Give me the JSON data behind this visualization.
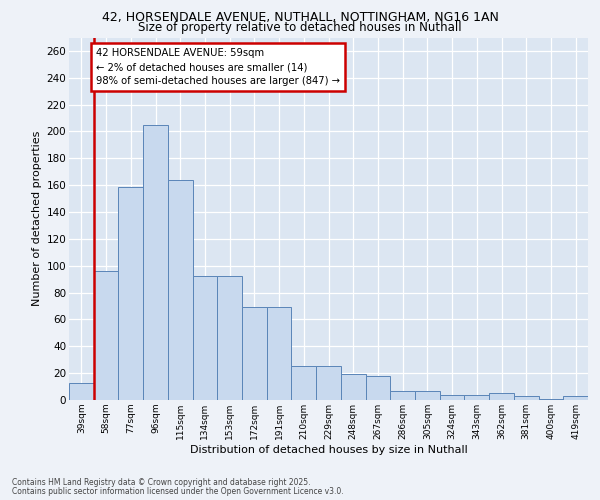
{
  "title_line1": "42, HORSENDALE AVENUE, NUTHALL, NOTTINGHAM, NG16 1AN",
  "title_line2": "Size of property relative to detached houses in Nuthall",
  "xlabel": "Distribution of detached houses by size in Nuthall",
  "ylabel": "Number of detached properties",
  "categories": [
    "39sqm",
    "58sqm",
    "77sqm",
    "96sqm",
    "115sqm",
    "134sqm",
    "153sqm",
    "172sqm",
    "191sqm",
    "210sqm",
    "229sqm",
    "248sqm",
    "267sqm",
    "286sqm",
    "305sqm",
    "324sqm",
    "343sqm",
    "362sqm",
    "381sqm",
    "400sqm",
    "419sqm"
  ],
  "values": [
    13,
    96,
    159,
    205,
    164,
    92,
    92,
    69,
    69,
    25,
    25,
    19,
    18,
    7,
    7,
    4,
    4,
    5,
    3,
    1,
    3
  ],
  "bar_color": "#c8d9ee",
  "bar_edge_color": "#5a85b8",
  "highlight_color": "#cc0000",
  "annotation_title": "42 HORSENDALE AVENUE: 59sqm",
  "annotation_line2": "← 2% of detached houses are smaller (14)",
  "annotation_line3": "98% of semi-detached houses are larger (847) →",
  "footer_line1": "Contains HM Land Registry data © Crown copyright and database right 2025.",
  "footer_line2": "Contains public sector information licensed under the Open Government Licence v3.0.",
  "plot_bg_color": "#dce6f2",
  "fig_bg_color": "#eef2f8",
  "grid_color": "#ffffff",
  "ylim": [
    0,
    270
  ],
  "yticks": [
    0,
    20,
    40,
    60,
    80,
    100,
    120,
    140,
    160,
    180,
    200,
    220,
    240,
    260
  ]
}
